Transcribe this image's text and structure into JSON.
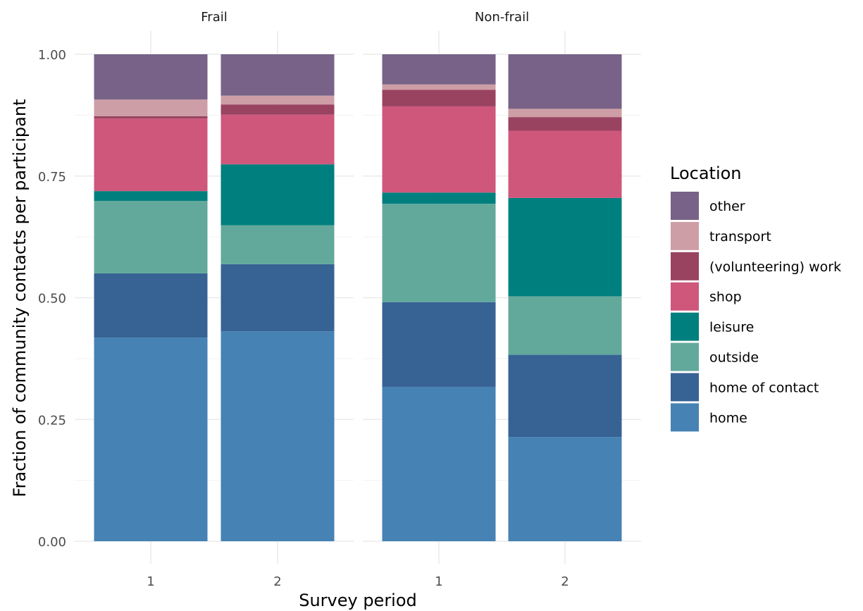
{
  "chart_data": {
    "type": "bar",
    "stacked": true,
    "facets": [
      "Frail",
      "Non-frail"
    ],
    "categories": [
      "1",
      "2"
    ],
    "xlabel": "Survey period",
    "ylabel": "Fraction of community contacts per participant",
    "ylim": [
      0,
      1
    ],
    "y_ticks": [
      "0.00",
      "0.25",
      "0.50",
      "0.75",
      "1.00"
    ],
    "legend_title": "Location",
    "legend_position": "right",
    "grid": true,
    "series": [
      {
        "name": "home",
        "color": "#4682B4",
        "values": {
          "Frail": [
            0.418,
            0.431
          ],
          "Non-frail": [
            0.317,
            0.214
          ]
        }
      },
      {
        "name": "home of contact",
        "color": "#376294",
        "values": {
          "Frail": [
            0.132,
            0.138
          ],
          "Non-frail": [
            0.174,
            0.169
          ]
        }
      },
      {
        "name": "outside",
        "color": "#62A99C",
        "values": {
          "Frail": [
            0.149,
            0.08
          ],
          "Non-frail": [
            0.202,
            0.12
          ]
        }
      },
      {
        "name": "leisure",
        "color": "#007F7F",
        "values": {
          "Frail": [
            0.02,
            0.125
          ],
          "Non-frail": [
            0.023,
            0.202
          ]
        }
      },
      {
        "name": "shop",
        "color": "#CE577B",
        "values": {
          "Frail": [
            0.149,
            0.102
          ],
          "Non-frail": [
            0.177,
            0.138
          ]
        }
      },
      {
        "name": "(volunteering) work",
        "color": "#9A4361",
        "values": {
          "Frail": [
            0.005,
            0.021
          ],
          "Non-frail": [
            0.034,
            0.028
          ]
        }
      },
      {
        "name": "transport",
        "color": "#CE9EA6",
        "values": {
          "Frail": [
            0.034,
            0.018
          ],
          "Non-frail": [
            0.011,
            0.017
          ]
        }
      },
      {
        "name": "other",
        "color": "#786287",
        "values": {
          "Frail": [
            0.093,
            0.085
          ],
          "Non-frail": [
            0.062,
            0.112
          ]
        }
      }
    ]
  }
}
